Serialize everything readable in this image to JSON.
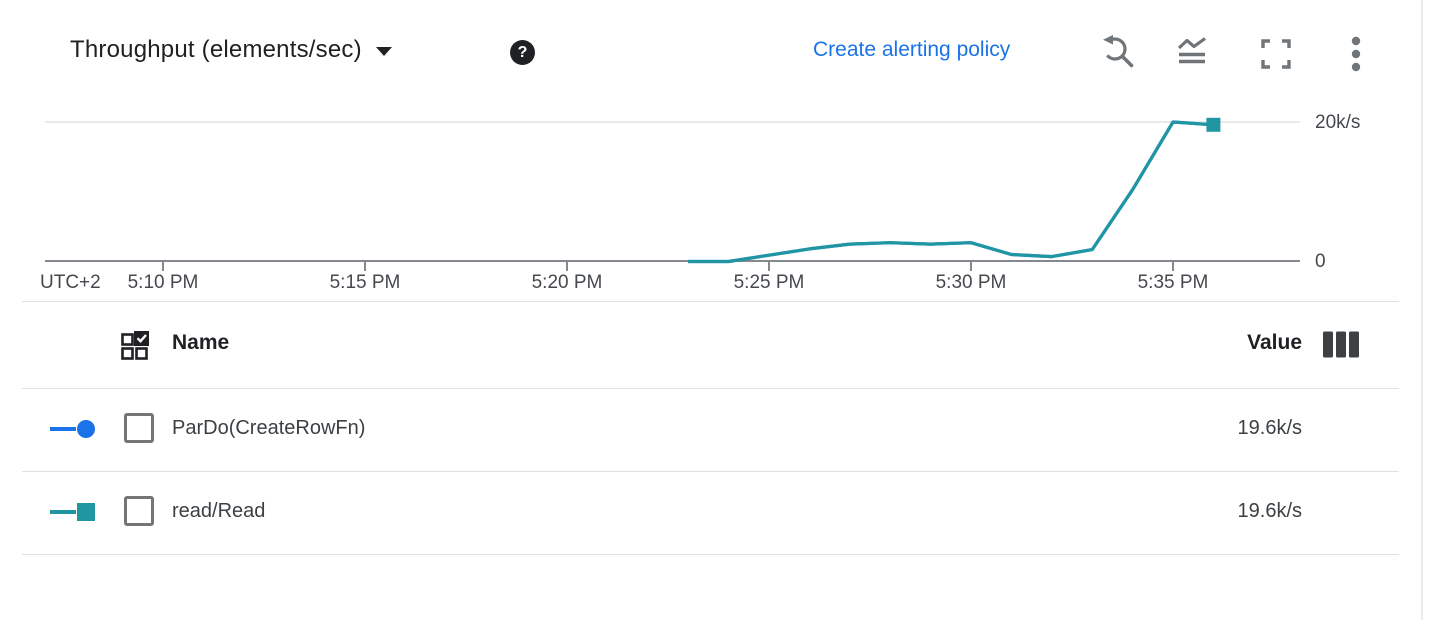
{
  "header": {
    "title": "Throughput (elements/sec)",
    "help_glyph": "?",
    "alert_link_label": "Create alerting policy",
    "toolbar_icons": [
      "reset-zoom",
      "line-chart",
      "fullscreen",
      "more-options"
    ]
  },
  "chart_data": {
    "type": "line",
    "title": "Throughput (elements/sec)",
    "timezone_label": "UTC+2",
    "x_tick_labels": [
      "5:10 PM",
      "5:15 PM",
      "5:20 PM",
      "5:25 PM",
      "5:30 PM",
      "5:35 PM"
    ],
    "y_tick_labels": [
      "20k/s",
      "0"
    ],
    "ylabel": "elements/sec",
    "ylim_k_per_sec": [
      0,
      20
    ],
    "grid": "horizontal-top-line-only",
    "legend_position": "table-below",
    "x_times": [
      "5:23 PM",
      "5:24 PM",
      "5:25 PM",
      "5:26 PM",
      "5:27 PM",
      "5:28 PM",
      "5:29 PM",
      "5:30 PM",
      "5:31 PM",
      "5:32 PM",
      "5:33 PM",
      "5:34 PM",
      "5:35 PM",
      "5:36 PM"
    ],
    "series": [
      {
        "name": "ParDo(CreateRowFn)",
        "color": "#1a73e8",
        "marker": "circle",
        "values_k_per_sec": [
          0,
          0,
          0.9,
          1.8,
          2.5,
          2.7,
          2.5,
          2.7,
          1.0,
          0.7,
          1.7,
          10.3,
          20.0,
          19.6
        ],
        "latest_value": "19.6k/s"
      },
      {
        "name": "read/Read",
        "color": "#2096a3",
        "marker": "square",
        "values_k_per_sec": [
          0,
          0,
          0.9,
          1.8,
          2.5,
          2.7,
          2.5,
          2.7,
          1.0,
          0.7,
          1.7,
          10.3,
          20.0,
          19.6
        ],
        "latest_value": "19.6k/s"
      }
    ],
    "lines_overlap": true
  },
  "table": {
    "columns": {
      "name": "Name",
      "value": "Value"
    },
    "rows": [
      {
        "name": "ParDo(CreateRowFn)",
        "value": "19.6k/s",
        "marker": "circle",
        "color": "#1a73e8"
      },
      {
        "name": "read/Read",
        "value": "19.6k/s",
        "marker": "square",
        "color": "#2096a3"
      }
    ]
  },
  "colors": {
    "accent_blue": "#1a73e8",
    "teal": "#2096a3",
    "axis_gray": "#85898d",
    "icon_gray": "#70757a",
    "text_dark": "#202124",
    "text_gray": "#45494e"
  }
}
